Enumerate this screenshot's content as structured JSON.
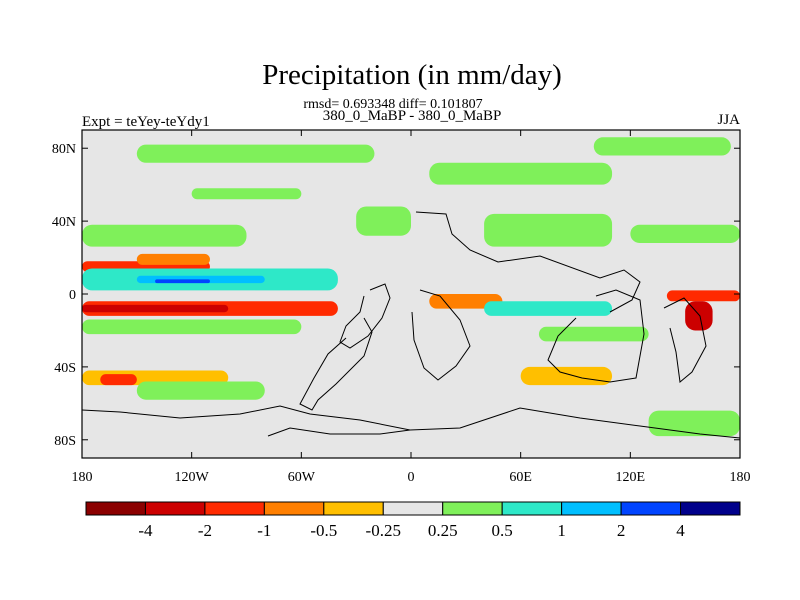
{
  "chart_data": {
    "type": "heatmap",
    "title": "Precipitation (in mm/day)",
    "stats_line": "rmsd= 0.693348 diff= 0.101807",
    "subtitle_left": "Expt = teYey-teYdy1",
    "subtitle_center": "380_0_MaBP - 380_0_MaBP",
    "subtitle_right": "JJA",
    "xlim": [
      -180,
      180
    ],
    "ylim": [
      -90,
      90
    ],
    "x_ticks": [
      {
        "value": -180,
        "label": "180"
      },
      {
        "value": -120,
        "label": "120W"
      },
      {
        "value": -60,
        "label": "60W"
      },
      {
        "value": 0,
        "label": "0"
      },
      {
        "value": 60,
        "label": "60E"
      },
      {
        "value": 120,
        "label": "120E"
      },
      {
        "value": 180,
        "label": "180"
      }
    ],
    "y_ticks": [
      {
        "value": 80,
        "label": "80N"
      },
      {
        "value": 40,
        "label": "40N"
      },
      {
        "value": 0,
        "label": "0"
      },
      {
        "value": -40,
        "label": "40S"
      },
      {
        "value": -80,
        "label": "80S"
      }
    ],
    "background_color": "#e6e6e6",
    "contour_levels": [
      -4,
      -2,
      -1,
      -0.5,
      -0.25,
      0.25,
      0.5,
      1,
      2,
      4
    ],
    "colorbar_labels": [
      "-4",
      "-2",
      "-1",
      "-0.5",
      "-0.25",
      "0.25",
      "0.5",
      "1",
      "2",
      "4"
    ],
    "colorbar_colors": [
      "#8b0000",
      "#cc0000",
      "#ff2a00",
      "#ff7f00",
      "#ffbf00",
      "#e6e6e6",
      "#7ff05a",
      "#2ee8c8",
      "#00bfff",
      "#0044ff",
      "#00008b"
    ],
    "regions": [
      {
        "name": "green-north-band-1",
        "color": "#7ff05a",
        "lon": [
          -150,
          -20
        ],
        "lat": [
          72,
          82
        ]
      },
      {
        "name": "green-north-band-2",
        "color": "#7ff05a",
        "lon": [
          10,
          110
        ],
        "lat": [
          60,
          72
        ]
      },
      {
        "name": "green-north-band-3",
        "color": "#7ff05a",
        "lon": [
          100,
          175
        ],
        "lat": [
          76,
          86
        ]
      },
      {
        "name": "green-north-band-4",
        "color": "#7ff05a",
        "lon": [
          -120,
          -60
        ],
        "lat": [
          52,
          58
        ]
      },
      {
        "name": "green-north-pacific",
        "color": "#7ff05a",
        "lon": [
          -180,
          -90
        ],
        "lat": [
          26,
          38
        ]
      },
      {
        "name": "green-atlantic",
        "color": "#7ff05a",
        "lon": [
          -30,
          0
        ],
        "lat": [
          32,
          48
        ]
      },
      {
        "name": "green-asia",
        "color": "#7ff05a",
        "lon": [
          40,
          110
        ],
        "lat": [
          26,
          44
        ]
      },
      {
        "name": "green-west-pacific",
        "color": "#7ff05a",
        "lon": [
          120,
          180
        ],
        "lat": [
          28,
          38
        ]
      },
      {
        "name": "red-north-tropics",
        "color": "#ff2a00",
        "lon": [
          -180,
          -110
        ],
        "lat": [
          12,
          18
        ]
      },
      {
        "name": "orange-north-tropics",
        "color": "#ff7f00",
        "lon": [
          -150,
          -110
        ],
        "lat": [
          16,
          22
        ]
      },
      {
        "name": "cyan-itcz-north",
        "color": "#2ee8c8",
        "lon": [
          -180,
          -40
        ],
        "lat": [
          2,
          14
        ]
      },
      {
        "name": "blue-itcz-north",
        "color": "#00bfff",
        "lon": [
          -150,
          -80
        ],
        "lat": [
          6,
          10
        ]
      },
      {
        "name": "dark-blue-itcz",
        "color": "#0044ff",
        "lon": [
          -140,
          -110
        ],
        "lat": [
          6,
          8
        ]
      },
      {
        "name": "red-south-tropics",
        "color": "#ff2a00",
        "lon": [
          -180,
          -40
        ],
        "lat": [
          -12,
          -4
        ]
      },
      {
        "name": "dark-red-south-tropics",
        "color": "#cc0000",
        "lon": [
          -180,
          -100
        ],
        "lat": [
          -10,
          -6
        ]
      },
      {
        "name": "green-south-tropics",
        "color": "#7ff05a",
        "lon": [
          -180,
          -60
        ],
        "lat": [
          -22,
          -14
        ]
      },
      {
        "name": "orange-africa",
        "color": "#ff7f00",
        "lon": [
          10,
          50
        ],
        "lat": [
          -8,
          0
        ]
      },
      {
        "name": "cyan-indian-ocean",
        "color": "#2ee8c8",
        "lon": [
          40,
          110
        ],
        "lat": [
          -12,
          -4
        ]
      },
      {
        "name": "red-west-pacific",
        "color": "#ff2a00",
        "lon": [
          140,
          180
        ],
        "lat": [
          -4,
          2
        ]
      },
      {
        "name": "dark-red-east-pacific",
        "color": "#cc0000",
        "lon": [
          150,
          165
        ],
        "lat": [
          -20,
          -4
        ]
      },
      {
        "name": "green-south-indian",
        "color": "#7ff05a",
        "lon": [
          70,
          130
        ],
        "lat": [
          -26,
          -18
        ]
      },
      {
        "name": "orange-south-atlantic",
        "color": "#ffbf00",
        "lon": [
          -180,
          -100
        ],
        "lat": [
          -50,
          -42
        ]
      },
      {
        "name": "red-south-atlantic",
        "color": "#ff2a00",
        "lon": [
          -170,
          -150
        ],
        "lat": [
          -50,
          -44
        ]
      },
      {
        "name": "green-southern-ocean",
        "color": "#7ff05a",
        "lon": [
          -150,
          -80
        ],
        "lat": [
          -58,
          -48
        ]
      },
      {
        "name": "orange-southern-ocean",
        "color": "#ffbf00",
        "lon": [
          60,
          110
        ],
        "lat": [
          -50,
          -40
        ]
      },
      {
        "name": "green-antarctic-margin",
        "color": "#7ff05a",
        "lon": [
          130,
          180
        ],
        "lat": [
          -78,
          -64
        ]
      }
    ]
  }
}
